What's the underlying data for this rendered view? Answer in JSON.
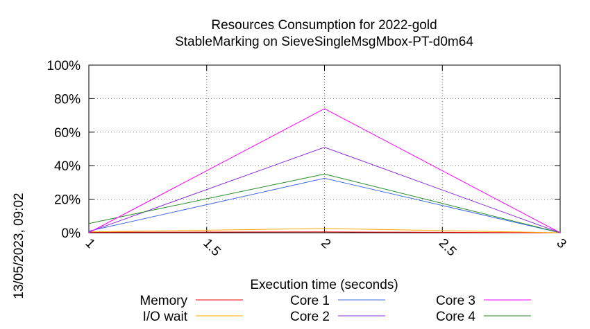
{
  "chart_data": {
    "type": "line",
    "title_line1": "Resources Consumption for 2022-gold",
    "title_line2": "StableMarking on SieveSingleMsgMbox-PT-d0m64",
    "xlabel": "Execution time (seconds)",
    "side_label": "13/05/2023, 09:02",
    "xlim": [
      1,
      3
    ],
    "ylim": [
      0,
      100
    ],
    "x_ticks": [
      1,
      1.5,
      2,
      2.5,
      3
    ],
    "x_tick_labels": [
      "1",
      "1.5",
      "2",
      "2.5",
      "3"
    ],
    "y_ticks": [
      0,
      20,
      40,
      60,
      80,
      100
    ],
    "y_tick_labels": [
      "0%",
      "20%",
      "40%",
      "60%",
      "80%",
      "100%"
    ],
    "grid": true,
    "legend_position": "bottom",
    "series": [
      {
        "name": "Memory",
        "color": "#ff0000",
        "x": [
          1,
          2,
          3
        ],
        "y": [
          0.3,
          0.5,
          0
        ]
      },
      {
        "name": "I/O wait",
        "color": "#ffa500",
        "x": [
          1,
          2,
          3
        ],
        "y": [
          0.5,
          2.5,
          0
        ]
      },
      {
        "name": "Core 1",
        "color": "#4169e1",
        "x": [
          1,
          2,
          3
        ],
        "y": [
          1,
          32.5,
          0
        ]
      },
      {
        "name": "Core 2",
        "color": "#8a2be2",
        "x": [
          1,
          2,
          3
        ],
        "y": [
          0.5,
          51,
          0
        ]
      },
      {
        "name": "Core 3",
        "color": "#ff00ff",
        "x": [
          1,
          2,
          3
        ],
        "y": [
          0,
          74,
          0
        ]
      },
      {
        "name": "Core 4",
        "color": "#228b22",
        "x": [
          1,
          2,
          3
        ],
        "y": [
          5.5,
          35,
          0
        ]
      }
    ]
  }
}
